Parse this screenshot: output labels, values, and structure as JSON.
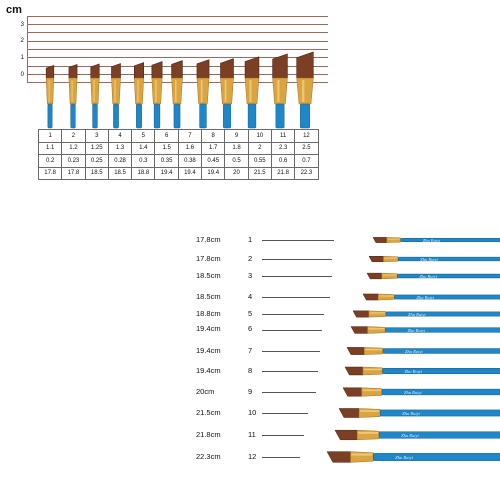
{
  "top": {
    "unit_label": "cm",
    "ruler_ticks": [
      "3",
      "2",
      "1",
      "0"
    ],
    "table": {
      "rows": [
        [
          "1",
          "2",
          "3",
          "4",
          "5",
          "6",
          "7",
          "8",
          "9",
          "10",
          "11",
          "12"
        ],
        [
          "1.1",
          "1.2",
          "1.25",
          "1.3",
          "1.4",
          "1.5",
          "1.6",
          "1.7",
          "1.8",
          "2",
          "2.3",
          "2.5"
        ],
        [
          "0.2",
          "0.23",
          "0.25",
          "0.28",
          "0.3",
          "0.35",
          "0.38",
          "0.45",
          "0.5",
          "0.55",
          "0.6",
          "0.7"
        ],
        [
          "17.8",
          "17.8",
          "18.5",
          "18.5",
          "18.8",
          "19.4",
          "19.4",
          "19.4",
          "20",
          "21.5",
          "21.8",
          "22.3"
        ]
      ]
    },
    "brush_shape": "angled-flat",
    "bristle_heights": [
      1.1,
      1.2,
      1.25,
      1.3,
      1.4,
      1.5,
      1.6,
      1.7,
      1.8,
      2,
      2.3,
      2.5
    ],
    "bristle_widths": [
      0.2,
      0.23,
      0.25,
      0.28,
      0.3,
      0.35,
      0.38,
      0.45,
      0.5,
      0.55,
      0.6,
      0.7
    ]
  },
  "bottom": {
    "brushes": [
      {
        "length": "17.8cm",
        "number": "1",
        "handle_text": "Zhu Ruiyi"
      },
      {
        "length": "17.8cm",
        "number": "2",
        "handle_text": "Zhu Ruiyi"
      },
      {
        "length": "18.5cm",
        "number": "3",
        "handle_text": "Zhu Ruiyi"
      },
      {
        "length": "18.5cm",
        "number": "4",
        "handle_text": "Zhu Ruiyi"
      },
      {
        "length": "18.8cm",
        "number": "5",
        "handle_text": "Zhu Ruiyi"
      },
      {
        "length": "19.4cm",
        "number": "6",
        "handle_text": "Zhu Ruiyi"
      },
      {
        "length": "19.4cm",
        "number": "7",
        "handle_text": "Zhu Ruiyi"
      },
      {
        "length": "19.4cm",
        "number": "8",
        "handle_text": "Zhu Ruiyi"
      },
      {
        "length": "20cm",
        "number": "9",
        "handle_text": "Zhu Ruiyi"
      },
      {
        "length": "21.5cm",
        "number": "10",
        "handle_text": "Zhu Ruiyi"
      },
      {
        "length": "21.8cm",
        "number": "11",
        "handle_text": "Zhu Ruiyi"
      },
      {
        "length": "22.3cm",
        "number": "12",
        "handle_text": "Zhu Ruiyi"
      }
    ]
  },
  "colors": {
    "handle_blue": "#1f86c7",
    "handle_dark": "#0f5c8f",
    "ferrule_gold": "#d9a441",
    "ferrule_light": "#f1cf7c",
    "bristle_brown": "#7a3f24",
    "bristle_dark": "#4e2412",
    "ruler_line": "#9b6a5a"
  }
}
